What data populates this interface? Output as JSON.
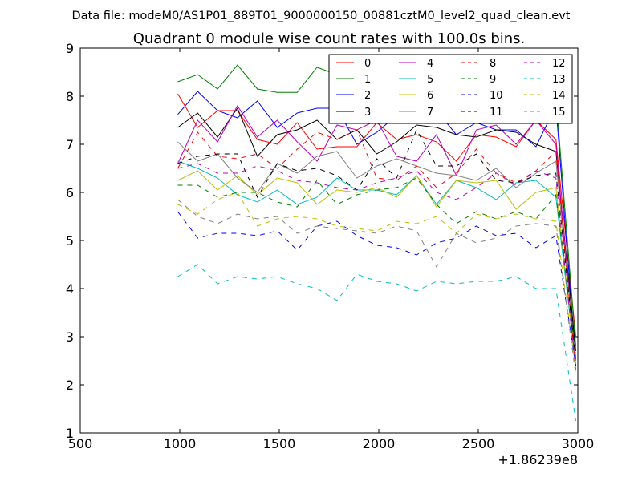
{
  "chart_data": {
    "type": "line",
    "suptitle": "Data file: modeM0/AS1P01_889T01_9000000150_00881cztM0_level2_quad_clean.evt",
    "title": "Quadrant 0 module wise count rates with 100.0s bins.",
    "xlabel": "",
    "ylabel": "",
    "x_offset_label": "+1.86239e8",
    "xlim": [
      500,
      3000
    ],
    "ylim": [
      1,
      9
    ],
    "x_ticks": [
      "500",
      "1000",
      "1500",
      "2000",
      "2500",
      "3000"
    ],
    "y_ticks": [
      "1",
      "2",
      "3",
      "4",
      "5",
      "6",
      "7",
      "8",
      "9"
    ],
    "grid": false,
    "legend_position": "top-right",
    "x": [
      990,
      1090,
      1190,
      1290,
      1390,
      1490,
      1590,
      1690,
      1790,
      1890,
      1990,
      2090,
      2190,
      2290,
      2390,
      2490,
      2590,
      2690,
      2790,
      2890,
      2990
    ],
    "series": [
      {
        "name": "0",
        "color": "#ff0000",
        "dash": "solid",
        "values": [
          8.05,
          7.35,
          7.7,
          7.7,
          7.1,
          7.0,
          7.45,
          6.9,
          6.95,
          6.95,
          7.45,
          7.1,
          7.2,
          7.05,
          6.65,
          7.2,
          7.15,
          6.95,
          7.5,
          7.1,
          3.0
        ]
      },
      {
        "name": "1",
        "color": "#008000",
        "dash": "solid",
        "values": [
          8.3,
          8.45,
          8.15,
          8.65,
          8.15,
          8.08,
          8.08,
          8.6,
          8.45,
          8.3,
          8.3,
          8.2,
          8.2,
          8.3,
          8.5,
          8.0,
          7.95,
          8.0,
          7.95,
          8.0,
          2.8
        ]
      },
      {
        "name": "2",
        "color": "#0000ff",
        "dash": "solid",
        "values": [
          7.62,
          8.1,
          7.7,
          7.55,
          7.9,
          7.35,
          7.65,
          7.75,
          7.75,
          7.0,
          7.25,
          7.6,
          7.9,
          7.7,
          7.2,
          7.45,
          7.3,
          7.3,
          6.95,
          7.8,
          2.5
        ]
      },
      {
        "name": "3",
        "color": "#000000",
        "dash": "solid",
        "values": [
          7.35,
          7.65,
          7.15,
          7.75,
          6.75,
          7.2,
          7.3,
          7.5,
          7.1,
          7.3,
          6.8,
          7.05,
          7.4,
          7.35,
          7.2,
          7.15,
          7.3,
          7.25,
          7.0,
          6.85,
          2.7
        ]
      },
      {
        "name": "4",
        "color": "#bf00bf",
        "dash": "solid",
        "values": [
          6.6,
          7.5,
          7.05,
          7.8,
          7.15,
          7.5,
          7.05,
          6.65,
          7.4,
          7.3,
          7.5,
          6.75,
          6.65,
          7.2,
          6.35,
          7.3,
          7.4,
          7.0,
          7.5,
          7.0,
          2.4
        ]
      },
      {
        "name": "5",
        "color": "#00bfbf",
        "dash": "solid",
        "values": [
          6.65,
          6.5,
          6.3,
          5.95,
          5.8,
          6.05,
          5.75,
          5.9,
          6.3,
          6.05,
          6.05,
          5.95,
          6.35,
          5.75,
          6.25,
          6.1,
          5.85,
          6.2,
          6.25,
          5.9,
          2.4
        ]
      },
      {
        "name": "6",
        "color": "#bfbf00",
        "dash": "solid",
        "values": [
          6.25,
          6.45,
          6.05,
          6.35,
          5.95,
          6.3,
          6.2,
          5.75,
          6.05,
          6.0,
          6.1,
          5.9,
          6.35,
          5.7,
          6.25,
          6.2,
          6.25,
          5.65,
          6.0,
          6.1,
          2.4
        ]
      },
      {
        "name": "7",
        "color": "#808080",
        "dash": "solid",
        "values": [
          7.05,
          6.65,
          6.8,
          6.3,
          6.0,
          6.6,
          6.4,
          6.75,
          6.85,
          6.3,
          6.55,
          6.7,
          6.55,
          6.4,
          6.35,
          6.25,
          6.5,
          6.1,
          6.4,
          6.65,
          2.5
        ]
      },
      {
        "name": "8",
        "color": "#ff0000",
        "dash": "dashed",
        "values": [
          6.5,
          7.25,
          6.75,
          6.7,
          6.8,
          6.5,
          6.9,
          7.25,
          7.1,
          7.3,
          6.3,
          6.25,
          6.55,
          6.1,
          6.4,
          6.9,
          6.4,
          6.2,
          6.45,
          6.85,
          2.3
        ]
      },
      {
        "name": "9",
        "color": "#008000",
        "dash": "dashed",
        "values": [
          6.15,
          6.15,
          5.9,
          6.0,
          6.0,
          5.8,
          5.7,
          6.25,
          5.75,
          5.95,
          6.05,
          6.1,
          6.3,
          5.75,
          5.35,
          5.6,
          5.45,
          5.6,
          5.45,
          5.95,
          2.6
        ]
      },
      {
        "name": "10",
        "color": "#0000ff",
        "dash": "dashed",
        "values": [
          5.6,
          5.05,
          5.15,
          5.15,
          5.1,
          5.2,
          4.8,
          5.3,
          5.4,
          5.1,
          4.9,
          4.85,
          4.7,
          4.95,
          5.05,
          5.3,
          5.1,
          5.15,
          4.85,
          5.1,
          2.4
        ]
      },
      {
        "name": "11",
        "color": "#000000",
        "dash": "dashed",
        "values": [
          6.6,
          6.75,
          6.8,
          6.8,
          5.9,
          6.6,
          6.45,
          6.5,
          6.35,
          6.05,
          6.7,
          6.3,
          7.3,
          6.55,
          6.55,
          6.8,
          6.25,
          6.2,
          6.35,
          6.4,
          2.5
        ]
      },
      {
        "name": "12",
        "color": "#bf00bf",
        "dash": "dashed",
        "values": [
          6.5,
          6.6,
          6.4,
          6.4,
          6.55,
          6.45,
          6.25,
          6.2,
          6.1,
          6.05,
          6.2,
          6.3,
          6.45,
          6.0,
          5.85,
          6.1,
          6.4,
          6.15,
          6.45,
          6.3,
          2.3
        ]
      },
      {
        "name": "13",
        "color": "#00bfbf",
        "dash": "dashed",
        "values": [
          4.25,
          4.5,
          4.1,
          4.25,
          4.2,
          4.25,
          4.1,
          4.0,
          3.75,
          4.3,
          4.15,
          4.1,
          3.95,
          4.15,
          4.1,
          4.15,
          4.15,
          4.25,
          4.0,
          4.0,
          1.25
        ]
      },
      {
        "name": "14",
        "color": "#bfbf00",
        "dash": "dashed",
        "values": [
          5.75,
          5.55,
          5.85,
          6.0,
          5.3,
          5.45,
          5.5,
          5.45,
          5.3,
          5.25,
          5.2,
          5.4,
          5.35,
          5.5,
          5.15,
          5.55,
          5.45,
          5.55,
          5.45,
          5.4,
          2.3
        ]
      },
      {
        "name": "15",
        "color": "#808080",
        "dash": "dashed",
        "values": [
          5.85,
          5.5,
          5.35,
          5.55,
          5.45,
          5.5,
          5.15,
          5.3,
          5.25,
          5.2,
          5.15,
          5.3,
          5.2,
          4.45,
          5.15,
          4.95,
          5.05,
          5.3,
          5.35,
          5.3,
          2.2
        ]
      }
    ]
  }
}
